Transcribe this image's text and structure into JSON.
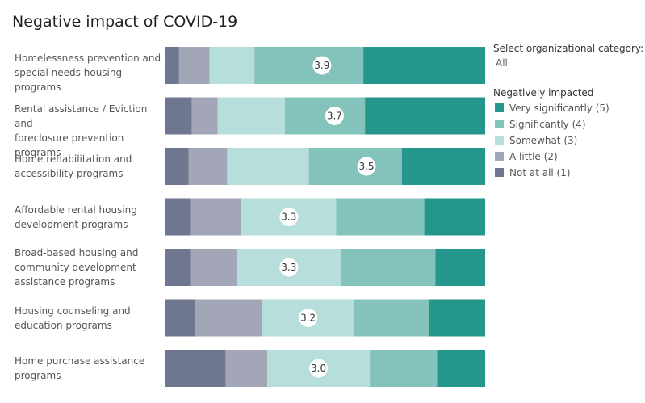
{
  "title": "Negative impact of COVID-19",
  "filter": {
    "label": "Select organizational category:",
    "value": "All"
  },
  "legend": {
    "title": "Negatively impacted",
    "items": [
      {
        "label": "Very significantly (5)",
        "color": "#25968c"
      },
      {
        "label": "Significantly (4)",
        "color": "#84c3bb"
      },
      {
        "label": "Somewhat (3)",
        "color": "#b6deda"
      },
      {
        "label": "A little (2)",
        "color": "#a3a6b6"
      },
      {
        "label": "Not at all (1)",
        "color": "#6e7690"
      }
    ]
  },
  "chart_data": {
    "type": "bar",
    "stacked": true,
    "orientation": "horizontal",
    "unit": "percent of respondents",
    "categories": [
      "Homelessness prevention and special needs housing programs",
      "Rental assistance / Eviction and foreclosure prevention programs",
      "Home rehabilitation and accessibility programs",
      "Affordable rental housing development programs",
      "Broad-based housing and community development assistance programs",
      "Housing counseling and education programs",
      "Home purchase assistance programs"
    ],
    "category_lines": [
      [
        "Homelessness prevention and",
        "special needs housing programs"
      ],
      [
        "Rental assistance / Eviction and",
        "foreclosure prevention programs"
      ],
      [
        "Home rehabilitation and",
        "accessibility programs"
      ],
      [
        "Affordable rental housing",
        "development programs"
      ],
      [
        "Broad-based housing and",
        "community development",
        "assistance programs"
      ],
      [
        "Housing counseling and",
        "education programs"
      ],
      [
        "Home purchase assistance",
        "programs"
      ]
    ],
    "series": [
      {
        "name": "Not at all (1)",
        "color": "#6e7690",
        "values": [
          4.5,
          8.5,
          7.5,
          8,
          8,
          9.5,
          19
        ]
      },
      {
        "name": "A little (2)",
        "color": "#a3a6b6",
        "values": [
          9.5,
          8,
          12,
          16,
          14.5,
          21,
          13
        ]
      },
      {
        "name": "Somewhat (3)",
        "color": "#b6deda",
        "values": [
          14,
          21,
          25.5,
          29.5,
          32.5,
          28.5,
          32
        ]
      },
      {
        "name": "Significantly (4)",
        "color": "#84c3bb",
        "values": [
          34,
          25,
          29,
          27.5,
          29.5,
          23.5,
          21
        ]
      },
      {
        "name": "Very significantly (5)",
        "color": "#25968c",
        "values": [
          38,
          37.5,
          26,
          19,
          15.5,
          17.5,
          15
        ]
      }
    ],
    "averages": [
      3.9,
      3.7,
      3.5,
      3.3,
      3.3,
      3.2,
      3.0
    ],
    "average_labels": [
      "3.9",
      "3.7",
      "3.5",
      "3.3",
      "3.3",
      "3.2",
      "3.0"
    ],
    "xlim": [
      0,
      100
    ]
  }
}
